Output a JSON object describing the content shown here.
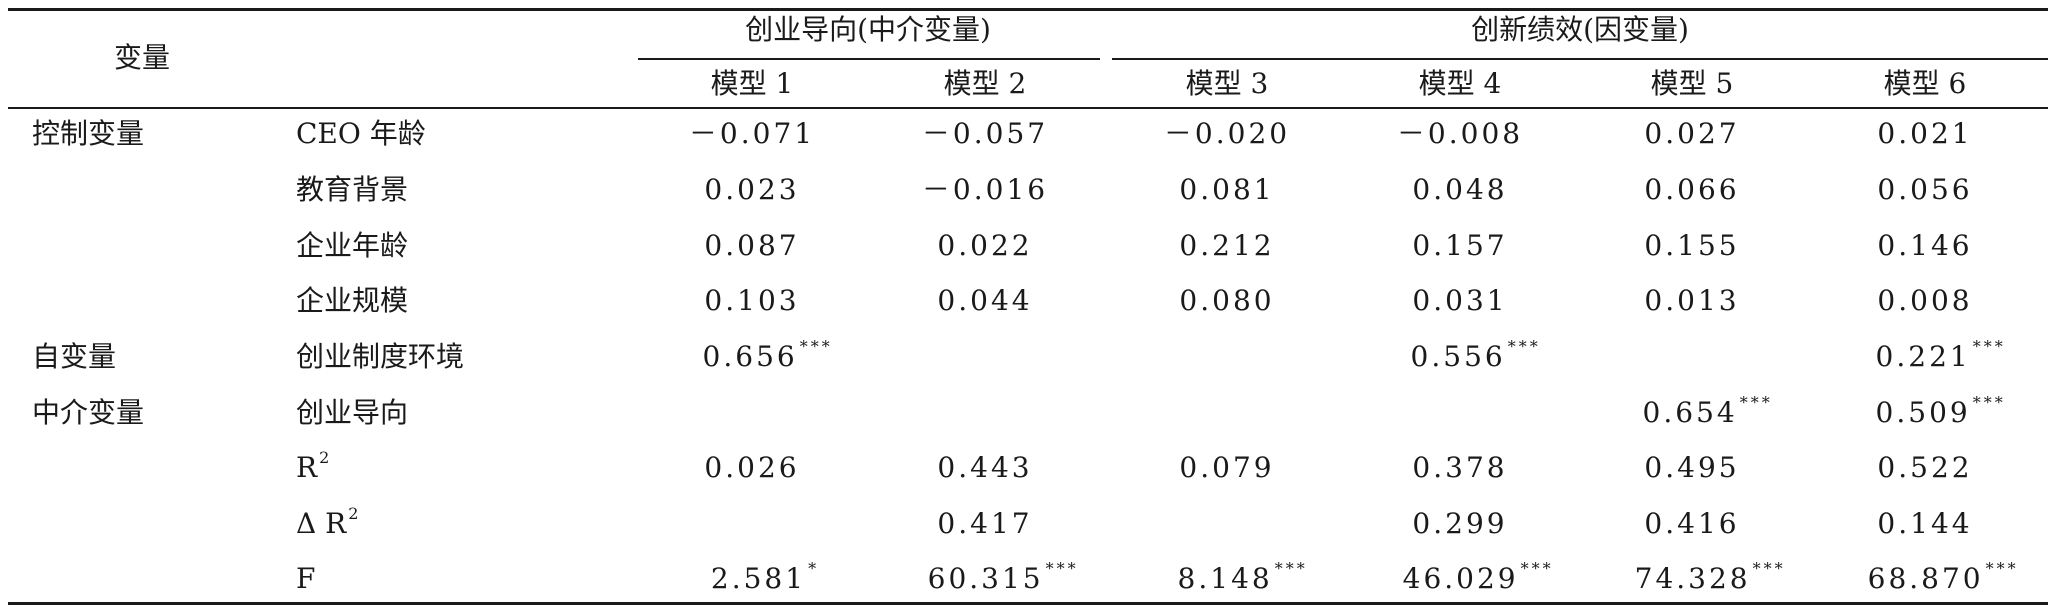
{
  "header": {
    "variable_label": "变量",
    "group1": "创业导向(中介变量)",
    "group2": "创新绩效(因变量)",
    "models": [
      "模型 1",
      "模型 2",
      "模型 3",
      "模型 4",
      "模型 5",
      "模型 6"
    ]
  },
  "rows": [
    {
      "category": "控制变量",
      "name": "CEO 年龄",
      "values": [
        "－0.071",
        "－0.057",
        "－0.020",
        "－0.008",
        "0.027",
        "0.021"
      ],
      "sig": [
        "",
        "",
        "",
        "",
        "",
        ""
      ]
    },
    {
      "category": "",
      "name": "教育背景",
      "values": [
        "0.023",
        "－0.016",
        "0.081",
        "0.048",
        "0.066",
        "0.056"
      ],
      "sig": [
        "",
        "",
        "",
        "",
        "",
        ""
      ]
    },
    {
      "category": "",
      "name": "企业年龄",
      "values": [
        "0.087",
        "0.022",
        "0.212",
        "0.157",
        "0.155",
        "0.146"
      ],
      "sig": [
        "",
        "",
        "",
        "",
        "",
        ""
      ]
    },
    {
      "category": "",
      "name": "企业规模",
      "values": [
        "0.103",
        "0.044",
        "0.080",
        "0.031",
        "0.013",
        "0.008"
      ],
      "sig": [
        "",
        "",
        "",
        "",
        "",
        ""
      ]
    },
    {
      "category": "自变量",
      "name": "创业制度环境",
      "values": [
        "0.656",
        "",
        "",
        "0.556",
        "",
        "0.221"
      ],
      "sig": [
        "***",
        "",
        "",
        "***",
        "",
        "***"
      ]
    },
    {
      "category": "中介变量",
      "name": "创业导向",
      "values": [
        "",
        "",
        "",
        "",
        "0.654",
        "0.509"
      ],
      "sig": [
        "",
        "",
        "",
        "",
        "***",
        "***"
      ]
    },
    {
      "category": "",
      "name": "R",
      "name_sup": "2",
      "values": [
        "0.026",
        "0.443",
        "0.079",
        "0.378",
        "0.495",
        "0.522"
      ],
      "sig": [
        "",
        "",
        "",
        "",
        "",
        ""
      ]
    },
    {
      "category": "",
      "name": "Δ R",
      "name_sup": "2",
      "values": [
        "",
        "0.417",
        "",
        "0.299",
        "0.416",
        "0.144"
      ],
      "sig": [
        "",
        "",
        "",
        "",
        "",
        ""
      ]
    },
    {
      "category": "",
      "name": "F",
      "values": [
        "2.581",
        "60.315",
        "8.148",
        "46.029",
        "74.328",
        "68.870"
      ],
      "sig": [
        "*",
        "***",
        "***",
        "***",
        "***",
        "***"
      ]
    }
  ]
}
